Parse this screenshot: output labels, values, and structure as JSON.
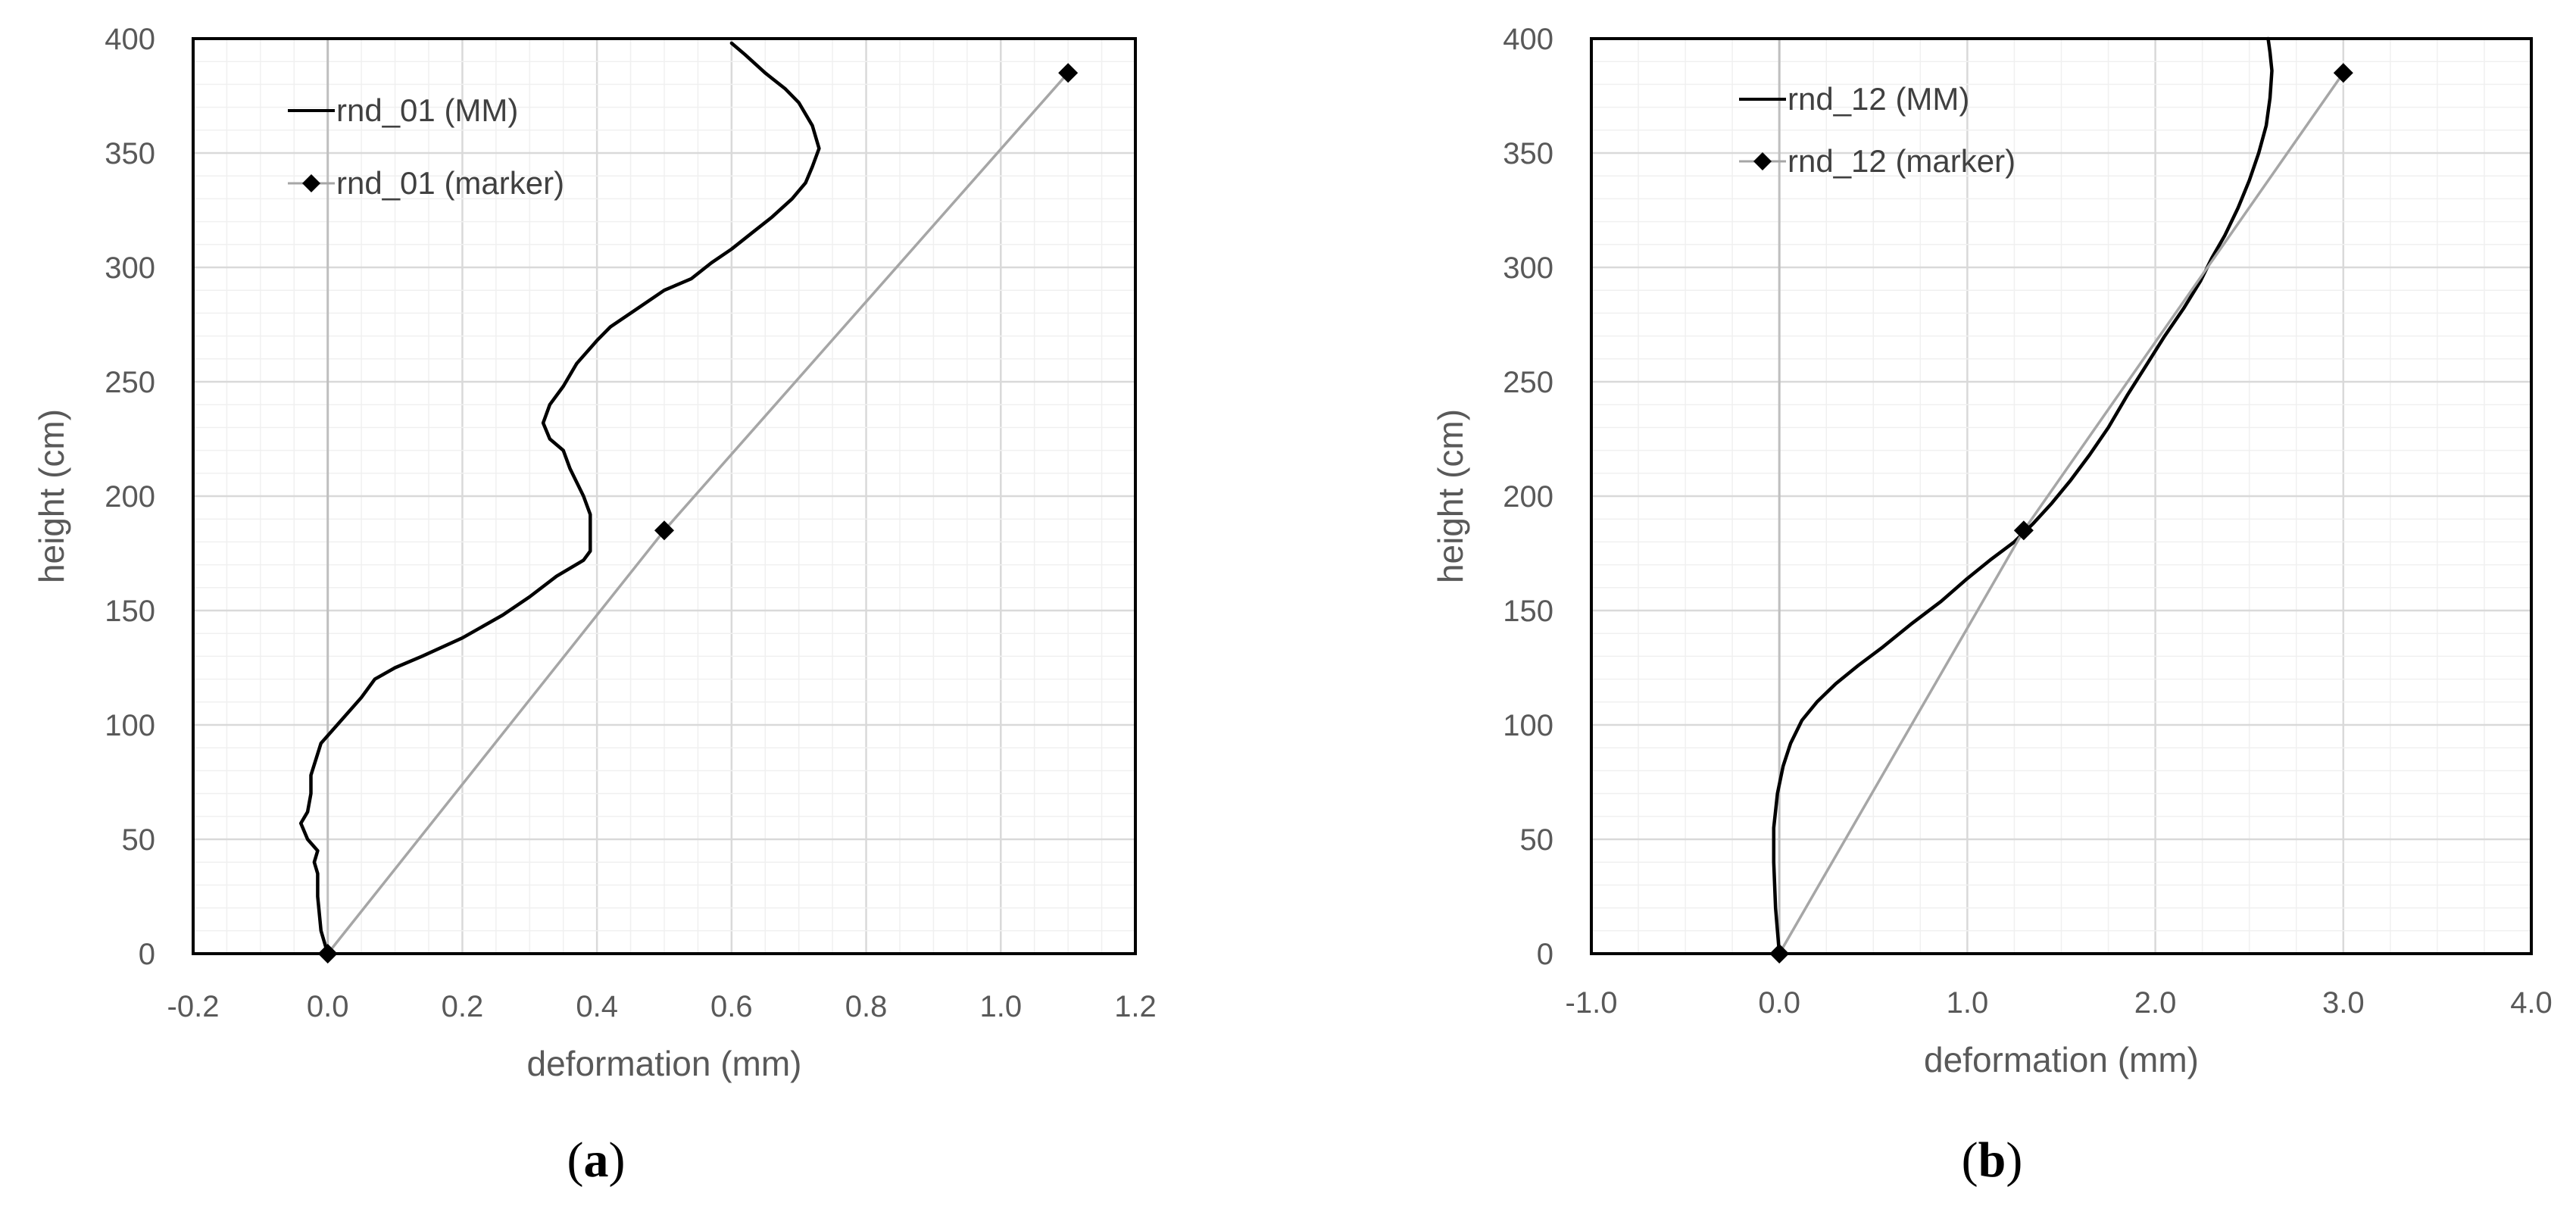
{
  "chart_data": [
    {
      "type": "line",
      "panel_label": "a",
      "xlabel": "deformation (mm)",
      "ylabel": "height (cm)",
      "xlim": [
        -0.2,
        1.2
      ],
      "ylim": [
        0,
        400
      ],
      "xticks": [
        "-0.2",
        "0.0",
        "0.2",
        "0.4",
        "0.6",
        "0.8",
        "1.0",
        "1.2"
      ],
      "yticks": [
        "0",
        "50",
        "100",
        "150",
        "200",
        "250",
        "300",
        "350",
        "400"
      ],
      "grid": true,
      "legend_position": "top-left",
      "series": [
        {
          "name": "rnd_01 (MM)",
          "color": "#000000",
          "marker": "none",
          "points": [
            [
              0.0,
              0
            ],
            [
              -0.01,
              10
            ],
            [
              -0.015,
              25
            ],
            [
              -0.015,
              35
            ],
            [
              -0.02,
              40
            ],
            [
              -0.015,
              45
            ],
            [
              -0.03,
              50
            ],
            [
              -0.04,
              57
            ],
            [
              -0.03,
              62
            ],
            [
              -0.025,
              70
            ],
            [
              -0.025,
              78
            ],
            [
              -0.01,
              92
            ],
            [
              0.02,
              102
            ],
            [
              0.05,
              112
            ],
            [
              0.07,
              120
            ],
            [
              0.1,
              125
            ],
            [
              0.14,
              130
            ],
            [
              0.2,
              138
            ],
            [
              0.26,
              148
            ],
            [
              0.3,
              156
            ],
            [
              0.34,
              165
            ],
            [
              0.38,
              172
            ],
            [
              0.39,
              176
            ],
            [
              0.39,
              182
            ],
            [
              0.39,
              192
            ],
            [
              0.38,
              200
            ],
            [
              0.36,
              212
            ],
            [
              0.35,
              220
            ],
            [
              0.33,
              225
            ],
            [
              0.32,
              232
            ],
            [
              0.33,
              240
            ],
            [
              0.35,
              248
            ],
            [
              0.37,
              258
            ],
            [
              0.4,
              268
            ],
            [
              0.42,
              274
            ],
            [
              0.46,
              282
            ],
            [
              0.5,
              290
            ],
            [
              0.54,
              295
            ],
            [
              0.57,
              302
            ],
            [
              0.6,
              308
            ],
            [
              0.63,
              315
            ],
            [
              0.66,
              322
            ],
            [
              0.69,
              330
            ],
            [
              0.71,
              337
            ],
            [
              0.72,
              344
            ],
            [
              0.73,
              352
            ],
            [
              0.72,
              362
            ],
            [
              0.7,
              372
            ],
            [
              0.68,
              378
            ],
            [
              0.65,
              385
            ],
            [
              0.62,
              393
            ],
            [
              0.6,
              398
            ]
          ]
        },
        {
          "name": "rnd_01 (marker)",
          "color": "#a6a6a6",
          "marker": "diamond",
          "points": [
            [
              0.0,
              0
            ],
            [
              0.5,
              185
            ],
            [
              1.1,
              385
            ]
          ]
        }
      ]
    },
    {
      "type": "line",
      "panel_label": "b",
      "xlabel": "deformation (mm)",
      "ylabel": "height (cm)",
      "xlim": [
        -1.0,
        4.0
      ],
      "ylim": [
        0,
        400
      ],
      "xticks": [
        "-1.0",
        "0.0",
        "1.0",
        "2.0",
        "3.0",
        "4.0"
      ],
      "yticks": [
        "0",
        "50",
        "100",
        "150",
        "200",
        "250",
        "300",
        "350",
        "400"
      ],
      "grid": true,
      "legend_position": "top-left",
      "series": [
        {
          "name": "rnd_12 (MM)",
          "color": "#000000",
          "marker": "none",
          "points": [
            [
              0.0,
              0
            ],
            [
              -0.02,
              20
            ],
            [
              -0.03,
              40
            ],
            [
              -0.03,
              55
            ],
            [
              -0.01,
              70
            ],
            [
              0.02,
              82
            ],
            [
              0.06,
              92
            ],
            [
              0.12,
              102
            ],
            [
              0.2,
              110
            ],
            [
              0.3,
              118
            ],
            [
              0.42,
              126
            ],
            [
              0.55,
              134
            ],
            [
              0.7,
              144
            ],
            [
              0.86,
              154
            ],
            [
              1.0,
              164
            ],
            [
              1.12,
              172
            ],
            [
              1.25,
              180
            ],
            [
              1.35,
              188
            ],
            [
              1.45,
              197
            ],
            [
              1.55,
              207
            ],
            [
              1.65,
              218
            ],
            [
              1.75,
              230
            ],
            [
              1.85,
              244
            ],
            [
              1.95,
              257
            ],
            [
              2.05,
              270
            ],
            [
              2.15,
              282
            ],
            [
              2.24,
              294
            ],
            [
              2.3,
              304
            ],
            [
              2.37,
              314
            ],
            [
              2.44,
              326
            ],
            [
              2.5,
              338
            ],
            [
              2.55,
              350
            ],
            [
              2.59,
              362
            ],
            [
              2.61,
              374
            ],
            [
              2.62,
              386
            ],
            [
              2.61,
              394
            ],
            [
              2.6,
              400
            ]
          ]
        },
        {
          "name": "rnd_12 (marker)",
          "color": "#a6a6a6",
          "marker": "diamond",
          "points": [
            [
              0.0,
              0
            ],
            [
              1.3,
              185
            ],
            [
              3.0,
              385
            ]
          ]
        }
      ]
    }
  ]
}
